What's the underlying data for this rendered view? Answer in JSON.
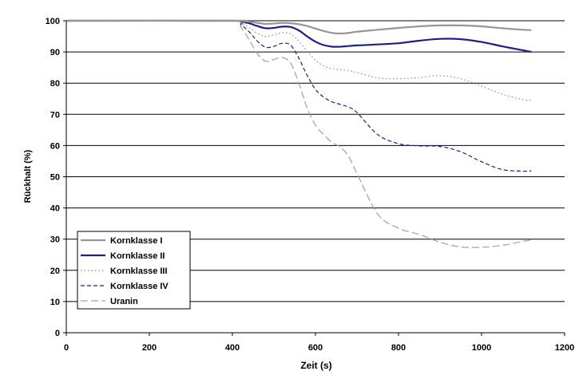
{
  "chart_data": {
    "type": "line",
    "title": "",
    "xlabel": "Zeit (s)",
    "ylabel": "Rückhalt (%)",
    "xlim": [
      0,
      1200
    ],
    "ylim": [
      0,
      100
    ],
    "xticks": [
      0,
      200,
      400,
      600,
      800,
      1000,
      1200
    ],
    "yticks": [
      0,
      10,
      20,
      30,
      40,
      50,
      60,
      70,
      80,
      90,
      100
    ],
    "grid": "horizontal",
    "legend_position": "bottom-left",
    "series": [
      {
        "name": "Kornklasse I",
        "color": "#969696",
        "dash": "solid",
        "x": [
          0,
          400,
          420,
          440,
          460,
          480,
          500,
          520,
          540,
          560,
          580,
          600,
          620,
          640,
          660,
          680,
          700,
          750,
          800,
          850,
          900,
          950,
          1000,
          1050,
          1100,
          1120
        ],
        "y": [
          100,
          100,
          100,
          99.7,
          99.3,
          99.0,
          99.1,
          99.3,
          99.2,
          98.9,
          98.3,
          97.5,
          96.7,
          96.1,
          95.9,
          96.1,
          96.5,
          97.1,
          97.7,
          98.2,
          98.5,
          98.5,
          98.2,
          97.6,
          97.1,
          97.0
        ]
      },
      {
        "name": "Kornklasse II",
        "color": "#1f1f8a",
        "dash": "solid",
        "x": [
          0,
          400,
          420,
          440,
          460,
          480,
          500,
          520,
          540,
          560,
          580,
          600,
          620,
          640,
          660,
          680,
          700,
          750,
          800,
          850,
          900,
          950,
          1000,
          1050,
          1100,
          1120
        ],
        "y": [
          100,
          100,
          99.8,
          99.2,
          98.3,
          97.6,
          97.7,
          98.1,
          98.0,
          96.9,
          95.0,
          93.3,
          92.2,
          91.7,
          91.7,
          91.9,
          92.1,
          92.4,
          92.8,
          93.6,
          94.2,
          94.1,
          93.2,
          91.8,
          90.5,
          90.0
        ]
      },
      {
        "name": "Kornklasse III",
        "color": "#8c8c8c",
        "dash": "dotted",
        "x": [
          0,
          400,
          420,
          440,
          460,
          480,
          500,
          520,
          540,
          560,
          580,
          600,
          620,
          640,
          660,
          680,
          700,
          750,
          800,
          850,
          900,
          950,
          1000,
          1050,
          1100,
          1120
        ],
        "y": [
          100,
          100,
          99.3,
          97.8,
          96.0,
          95.0,
          95.5,
          96.2,
          95.8,
          93.5,
          90.2,
          87.4,
          85.5,
          84.6,
          84.3,
          84.0,
          83.4,
          81.7,
          81.4,
          81.8,
          82.4,
          81.4,
          79.0,
          76.5,
          74.7,
          74.5
        ]
      },
      {
        "name": "Kornklasse IV",
        "color": "#1f1f8a",
        "dash": "dashed",
        "x": [
          0,
          400,
          420,
          440,
          460,
          480,
          500,
          520,
          540,
          560,
          580,
          600,
          620,
          640,
          660,
          680,
          700,
          750,
          800,
          850,
          900,
          950,
          1000,
          1050,
          1100,
          1120
        ],
        "y": [
          100,
          100,
          98.8,
          96.5,
          93.5,
          91.5,
          91.8,
          92.8,
          92.2,
          88.0,
          82.5,
          78.0,
          75.5,
          74.0,
          73.2,
          72.3,
          70.6,
          63.5,
          60.6,
          59.9,
          59.7,
          58.0,
          54.8,
          52.3,
          51.8,
          51.9
        ]
      },
      {
        "name": "Uranin",
        "color": "#a0a0a0",
        "dash": "longdash",
        "x": [
          0,
          400,
          420,
          440,
          460,
          480,
          500,
          520,
          540,
          560,
          580,
          600,
          620,
          640,
          660,
          680,
          700,
          750,
          800,
          850,
          900,
          950,
          1000,
          1050,
          1100,
          1120
        ],
        "y": [
          100,
          100,
          98.0,
          94.0,
          89.5,
          87.0,
          87.6,
          88.2,
          86.5,
          80.0,
          72.0,
          66.5,
          63.5,
          61.0,
          59.5,
          56.5,
          51.0,
          38.0,
          33.5,
          31.5,
          29.0,
          27.5,
          27.4,
          28.0,
          29.3,
          29.8
        ]
      }
    ]
  }
}
